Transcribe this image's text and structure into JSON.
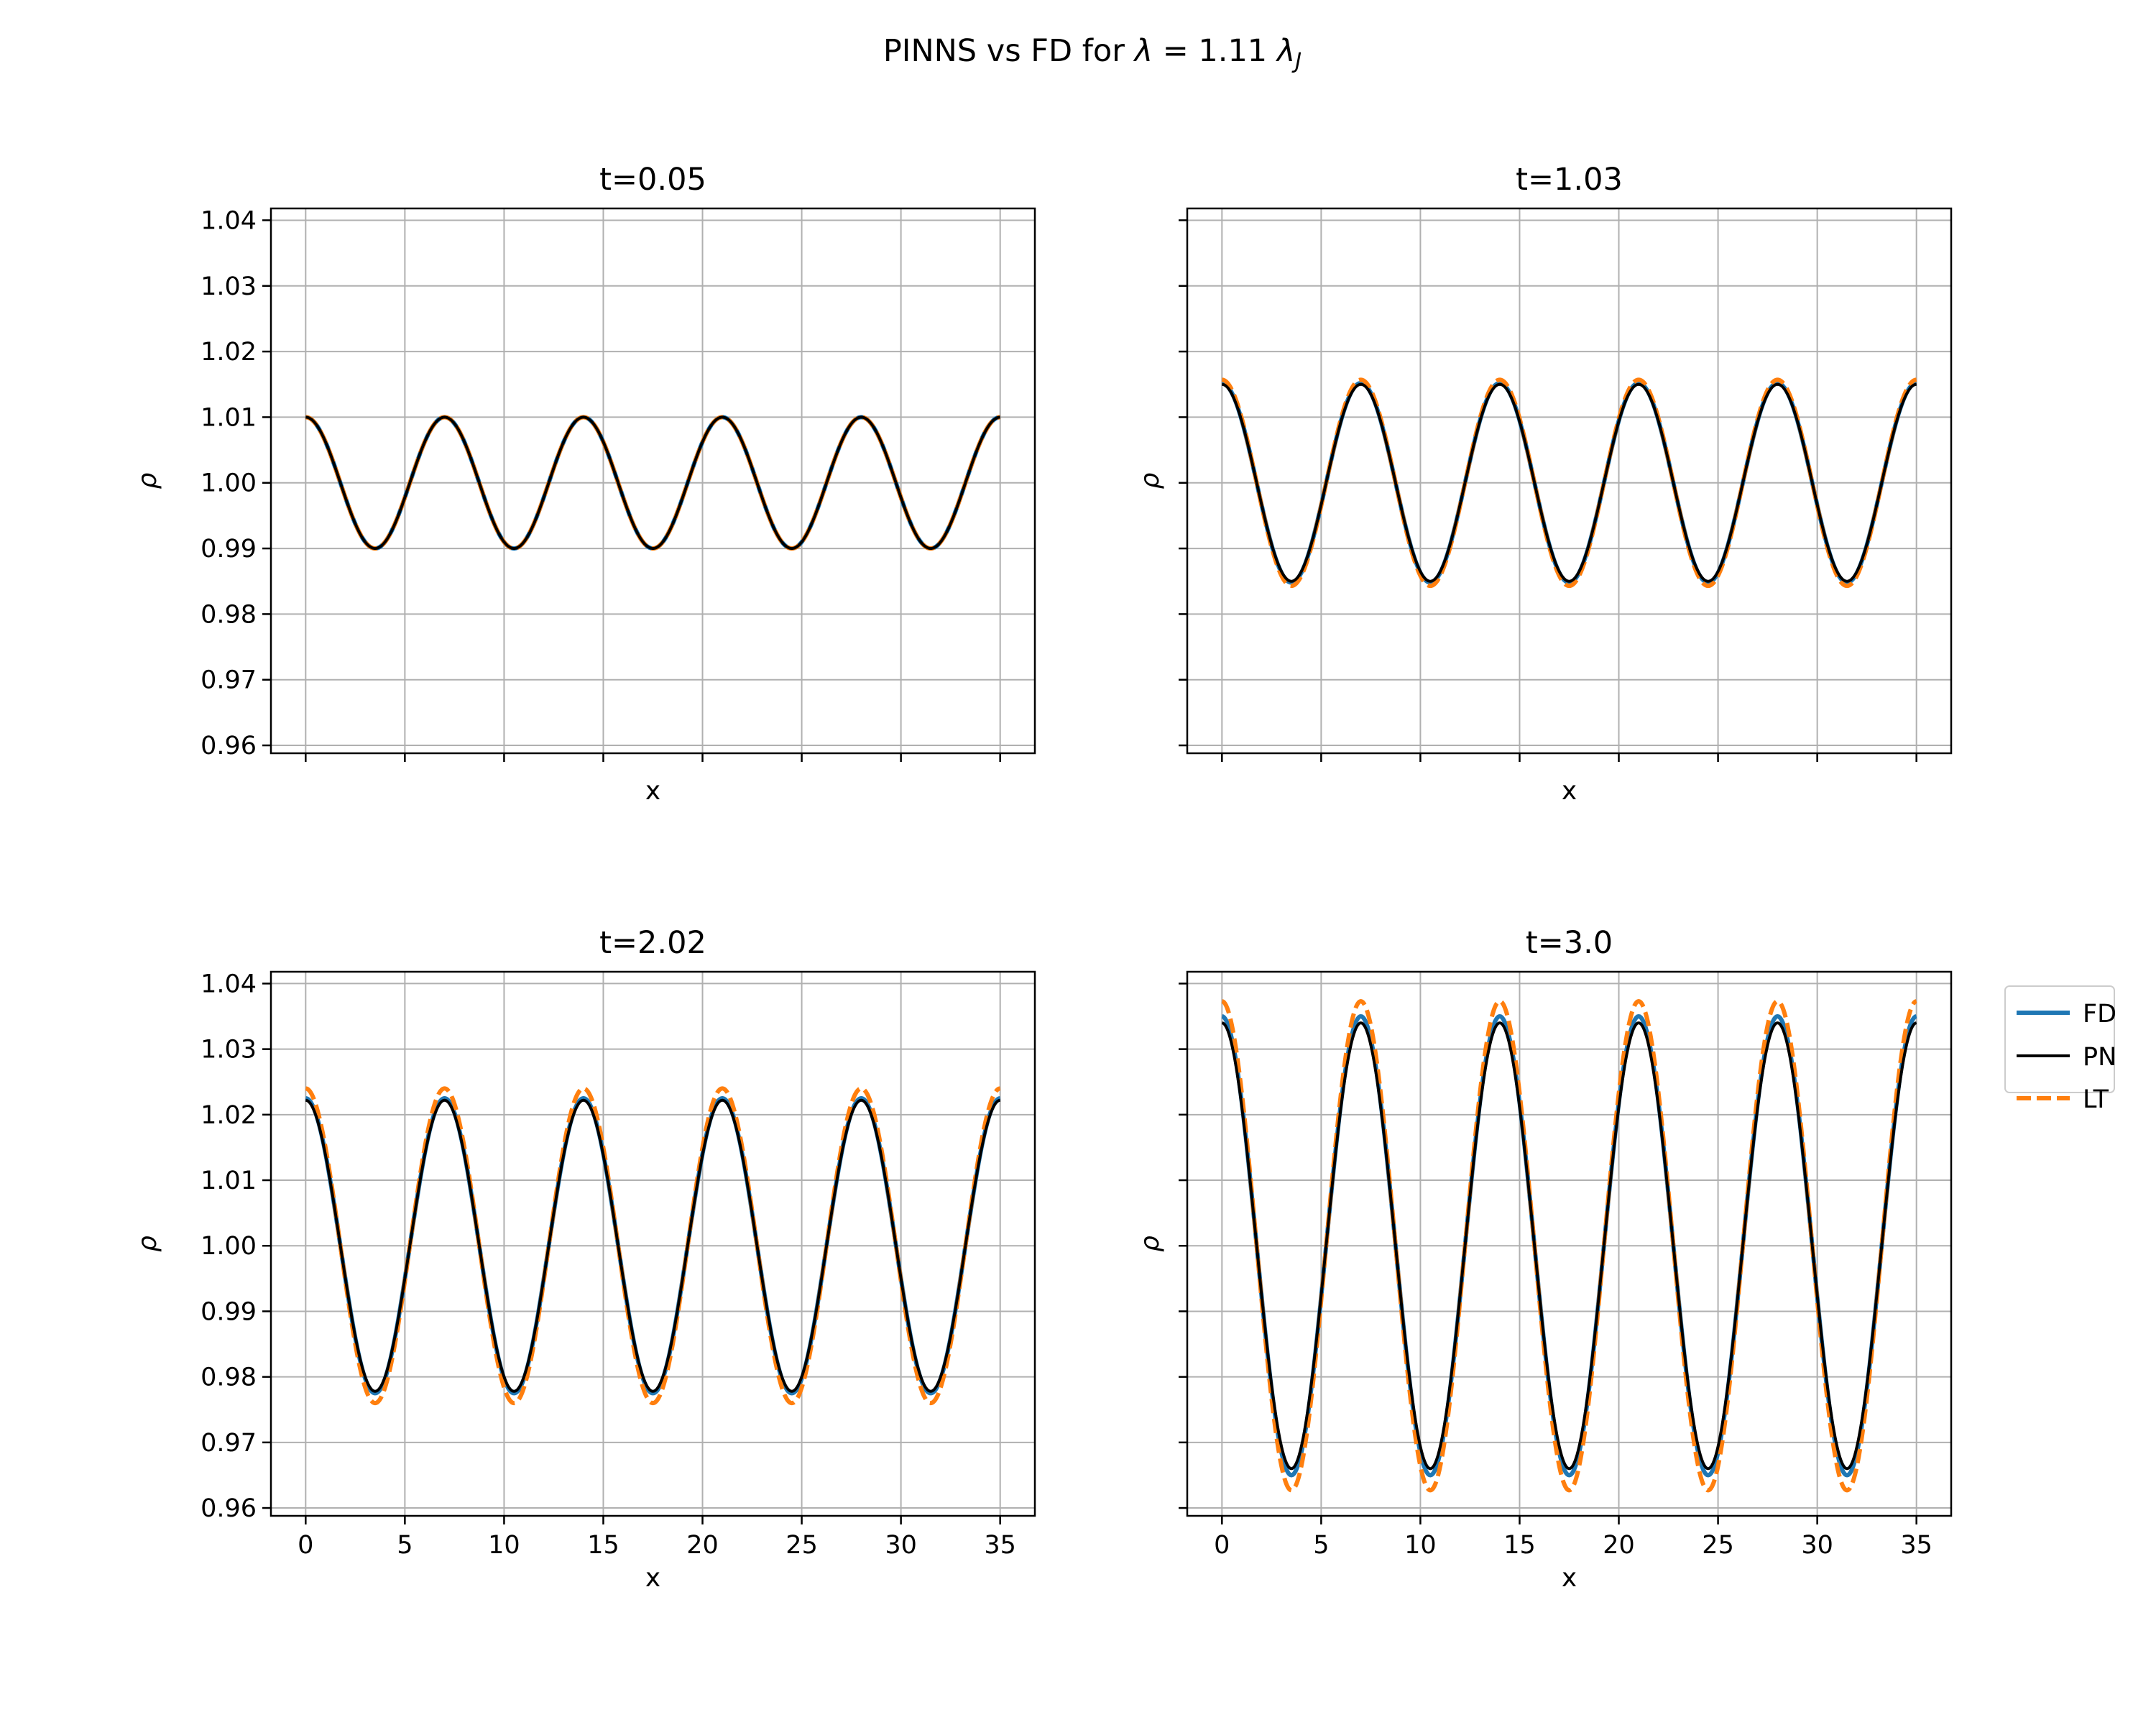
{
  "figure": {
    "title_prefix": "PINNS vs FD for ",
    "title_lambda": "λ",
    "title_equals": " = 1.11 ",
    "title_lambda_j": "λ",
    "title_sub_j": "J"
  },
  "legend": {
    "position": "right of bottom-right panel",
    "entries": [
      {
        "label": "FD",
        "color": "#1f77b4",
        "style": "solid"
      },
      {
        "label": "PN",
        "color": "#000000",
        "style": "solid"
      },
      {
        "label": "LT",
        "color": "#ff7f0e",
        "style": "dashed"
      }
    ]
  },
  "colors": {
    "FD": "#1f77b4",
    "PN": "#000000",
    "LT": "#ff7f0e",
    "grid": "#b0b0b0"
  },
  "chart_data": [
    {
      "type": "line",
      "title": "t=0.05",
      "xlabel": "x",
      "ylabel": "ρ",
      "xlim": [
        -1.75,
        36.75
      ],
      "ylim": [
        0.9588,
        1.0418
      ],
      "xticks": [
        0,
        5,
        10,
        15,
        20,
        25,
        30,
        35
      ],
      "xtick_labels_shown": false,
      "yticks": [
        "0.96",
        "0.97",
        "0.98",
        "0.99",
        "1.00",
        "1.01",
        "1.02",
        "1.03",
        "1.04"
      ],
      "ytick_labels_shown": true,
      "grid": true,
      "x_range": [
        0,
        35
      ],
      "wavelength": 7,
      "series": [
        {
          "name": "FD",
          "mean": 1.0,
          "amplitude": 0.01
        },
        {
          "name": "PN",
          "mean": 1.0,
          "amplitude": 0.01
        },
        {
          "name": "LT",
          "mean": 1.0,
          "amplitude": 0.01
        }
      ]
    },
    {
      "type": "line",
      "title": "t=1.03",
      "xlabel": "x",
      "ylabel": "ρ",
      "xlim": [
        -1.75,
        36.75
      ],
      "ylim": [
        0.9588,
        1.0418
      ],
      "xticks": [
        0,
        5,
        10,
        15,
        20,
        25,
        30,
        35
      ],
      "xtick_labels_shown": false,
      "yticks": [
        "0.96",
        "0.97",
        "0.98",
        "0.99",
        "1.00",
        "1.01",
        "1.02",
        "1.03",
        "1.04"
      ],
      "ytick_labels_shown": false,
      "grid": true,
      "x_range": [
        0,
        35
      ],
      "wavelength": 7,
      "series": [
        {
          "name": "FD",
          "mean": 1.0,
          "amplitude": 0.0152
        },
        {
          "name": "PN",
          "mean": 1.0,
          "amplitude": 0.015
        },
        {
          "name": "LT",
          "mean": 1.0,
          "amplitude": 0.0157
        }
      ]
    },
    {
      "type": "line",
      "title": "t=2.02",
      "xlabel": "x",
      "ylabel": "ρ",
      "xlim": [
        -1.75,
        36.75
      ],
      "ylim": [
        0.9588,
        1.0418
      ],
      "xticks": [
        0,
        5,
        10,
        15,
        20,
        25,
        30,
        35
      ],
      "xtick_labels_shown": true,
      "yticks": [
        "0.96",
        "0.97",
        "0.98",
        "0.99",
        "1.00",
        "1.01",
        "1.02",
        "1.03",
        "1.04"
      ],
      "ytick_labels_shown": true,
      "grid": true,
      "x_range": [
        0,
        35
      ],
      "wavelength": 7,
      "series": [
        {
          "name": "FD",
          "mean": 1.0,
          "amplitude": 0.0225
        },
        {
          "name": "PN",
          "mean": 1.0,
          "amplitude": 0.0222
        },
        {
          "name": "LT",
          "mean": 1.0,
          "amplitude": 0.024
        }
      ]
    },
    {
      "type": "line",
      "title": "t=3.0",
      "xlabel": "x",
      "ylabel": "ρ",
      "xlim": [
        -1.75,
        36.75
      ],
      "ylim": [
        0.9588,
        1.0418
      ],
      "xticks": [
        0,
        5,
        10,
        15,
        20,
        25,
        30,
        35
      ],
      "xtick_labels_shown": true,
      "yticks": [
        "0.96",
        "0.97",
        "0.98",
        "0.99",
        "1.00",
        "1.01",
        "1.02",
        "1.03",
        "1.04"
      ],
      "ytick_labels_shown": false,
      "grid": true,
      "x_range": [
        0,
        35
      ],
      "wavelength": 7,
      "series": [
        {
          "name": "FD",
          "mean": 1.0,
          "amplitude": 0.035
        },
        {
          "name": "PN",
          "mean": 1.0,
          "amplitude": 0.034
        },
        {
          "name": "LT",
          "mean": 1.0,
          "amplitude": 0.0373
        }
      ]
    }
  ]
}
